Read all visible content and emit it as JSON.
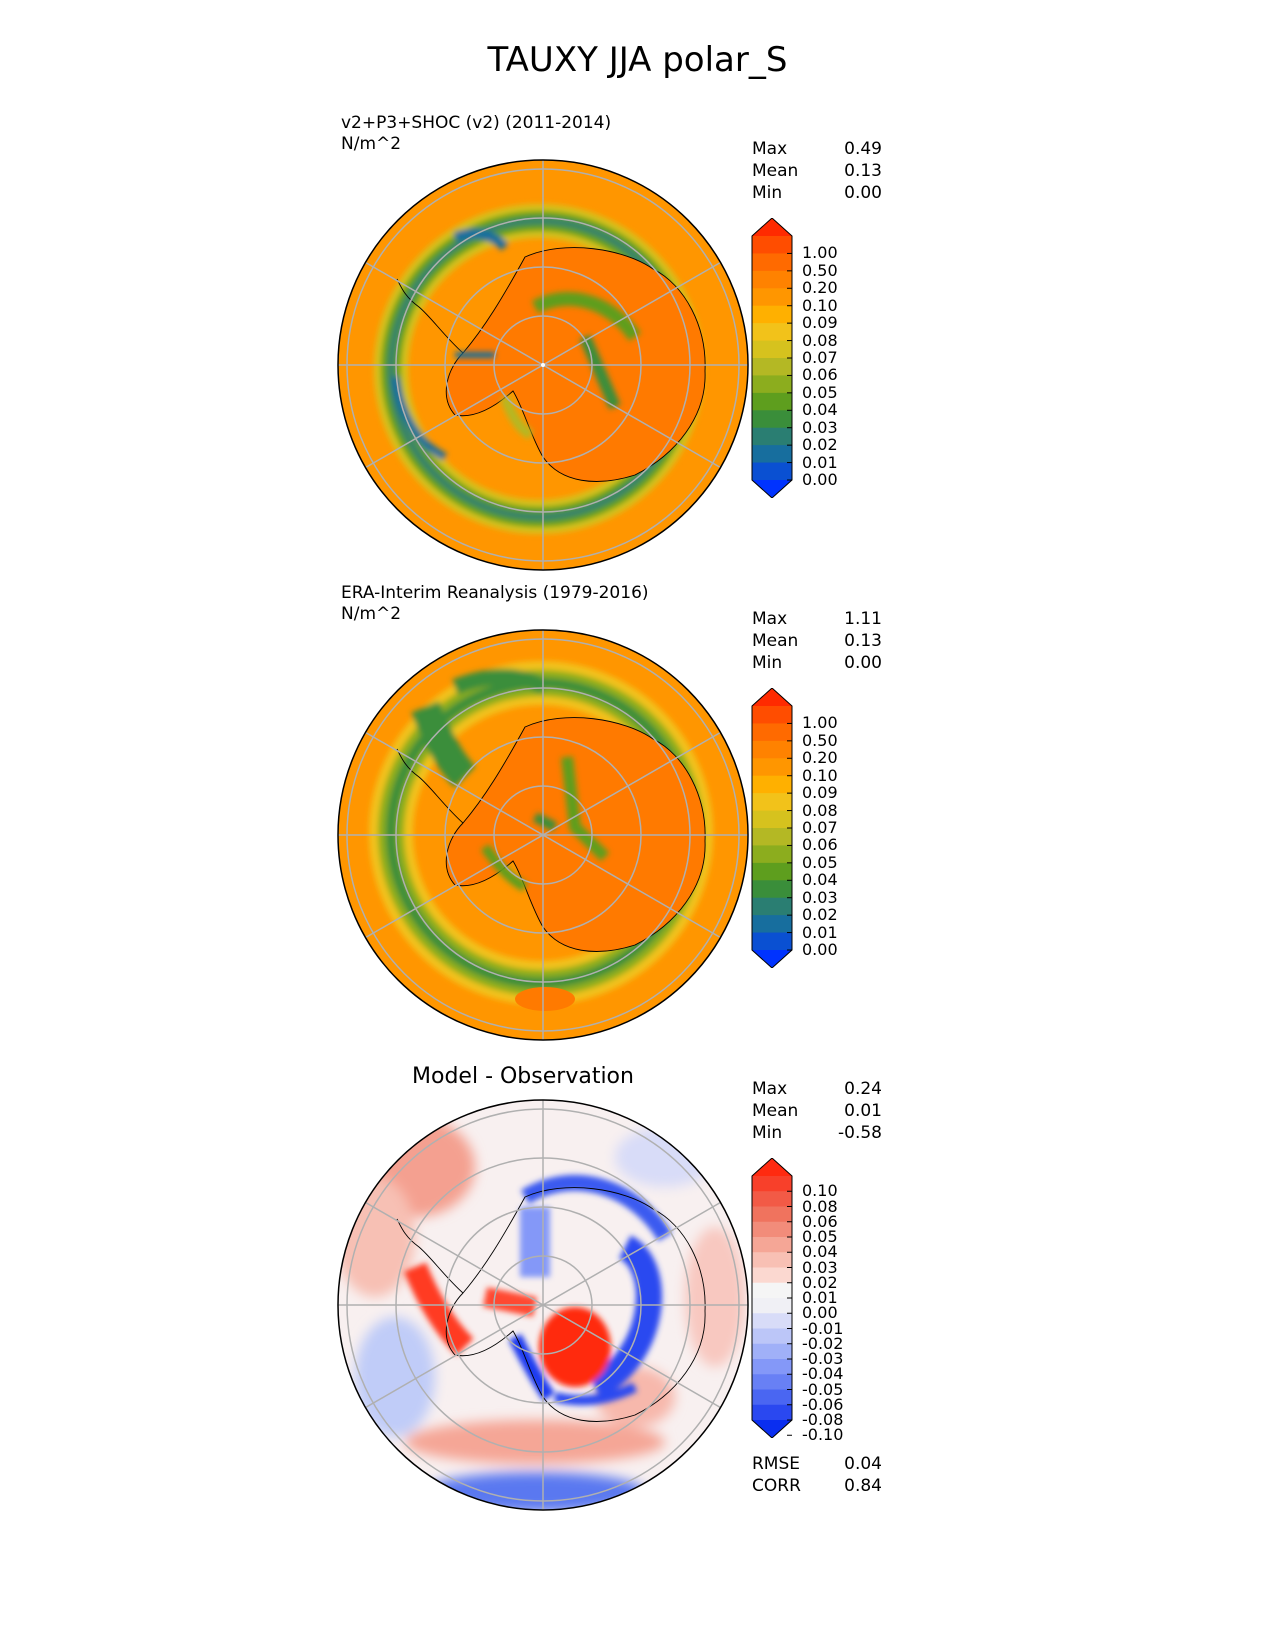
{
  "title": "TAUXY JJA polar_S",
  "panels": [
    {
      "id": "test",
      "title_lines": [
        "v2+P3+SHOC (v2) (2011-2014)",
        "N/m^2"
      ],
      "stats": [
        {
          "label": "Max",
          "value": "0.49"
        },
        {
          "label": "Mean",
          "value": "0.13"
        },
        {
          "label": "Min",
          "value": "0.00"
        }
      ],
      "colorbar": {
        "ticks": [
          "1.00",
          "0.50",
          "0.20",
          "0.10",
          "0.09",
          "0.08",
          "0.07",
          "0.06",
          "0.05",
          "0.04",
          "0.03",
          "0.02",
          "0.01",
          "0.00"
        ],
        "colors": [
          "#ff2a00",
          "#ff4d00",
          "#ff6a00",
          "#ff8200",
          "#ff9600",
          "#ffb000",
          "#f2c21a",
          "#d6c21e",
          "#b4b824",
          "#8cad1e",
          "#5e9e1e",
          "#3a8e3a",
          "#2a7e72",
          "#176e9e",
          "#0a50d2",
          "#0033ff"
        ]
      }
    },
    {
      "id": "ref",
      "title_lines": [
        "ERA-Interim Reanalysis (1979-2016)",
        "N/m^2"
      ],
      "stats": [
        {
          "label": "Max",
          "value": "1.11"
        },
        {
          "label": "Mean",
          "value": "0.13"
        },
        {
          "label": "Min",
          "value": "0.00"
        }
      ],
      "colorbar": {
        "ticks": [
          "1.00",
          "0.50",
          "0.20",
          "0.10",
          "0.09",
          "0.08",
          "0.07",
          "0.06",
          "0.05",
          "0.04",
          "0.03",
          "0.02",
          "0.01",
          "0.00"
        ],
        "colors": [
          "#ff2a00",
          "#ff4d00",
          "#ff6a00",
          "#ff8200",
          "#ff9600",
          "#ffb000",
          "#f2c21a",
          "#d6c21e",
          "#b4b824",
          "#8cad1e",
          "#5e9e1e",
          "#3a8e3a",
          "#2a7e72",
          "#176e9e",
          "#0a50d2",
          "#0033ff"
        ]
      }
    },
    {
      "id": "diff",
      "title": "Model - Observation",
      "stats": [
        {
          "label": "Max",
          "value": "0.24"
        },
        {
          "label": "Mean",
          "value": "0.01"
        },
        {
          "label": "Min",
          "value": "-0.58"
        }
      ],
      "colorbar": {
        "ticks": [
          "0.10",
          "0.08",
          "0.06",
          "0.05",
          "0.04",
          "0.03",
          "0.02",
          "0.01",
          "0.00",
          "-0.01",
          "-0.02",
          "-0.03",
          "-0.04",
          "-0.05",
          "-0.06",
          "-0.08",
          "-0.10"
        ],
        "colors": [
          "#ff2a10",
          "#f8402a",
          "#f25a46",
          "#f0735e",
          "#f28c7a",
          "#f5a696",
          "#f8c0b4",
          "#fbd8d0",
          "#f5f5f5",
          "#f0f0f5",
          "#d8dcf8",
          "#bcc6f8",
          "#a0b0f8",
          "#8498f8",
          "#6880f5",
          "#4a66f2",
          "#2a48f0",
          "#0a2ef0"
        ]
      },
      "metrics": [
        {
          "label": "RMSE",
          "value": "0.04"
        },
        {
          "label": "CORR",
          "value": "0.84"
        }
      ]
    }
  ]
}
